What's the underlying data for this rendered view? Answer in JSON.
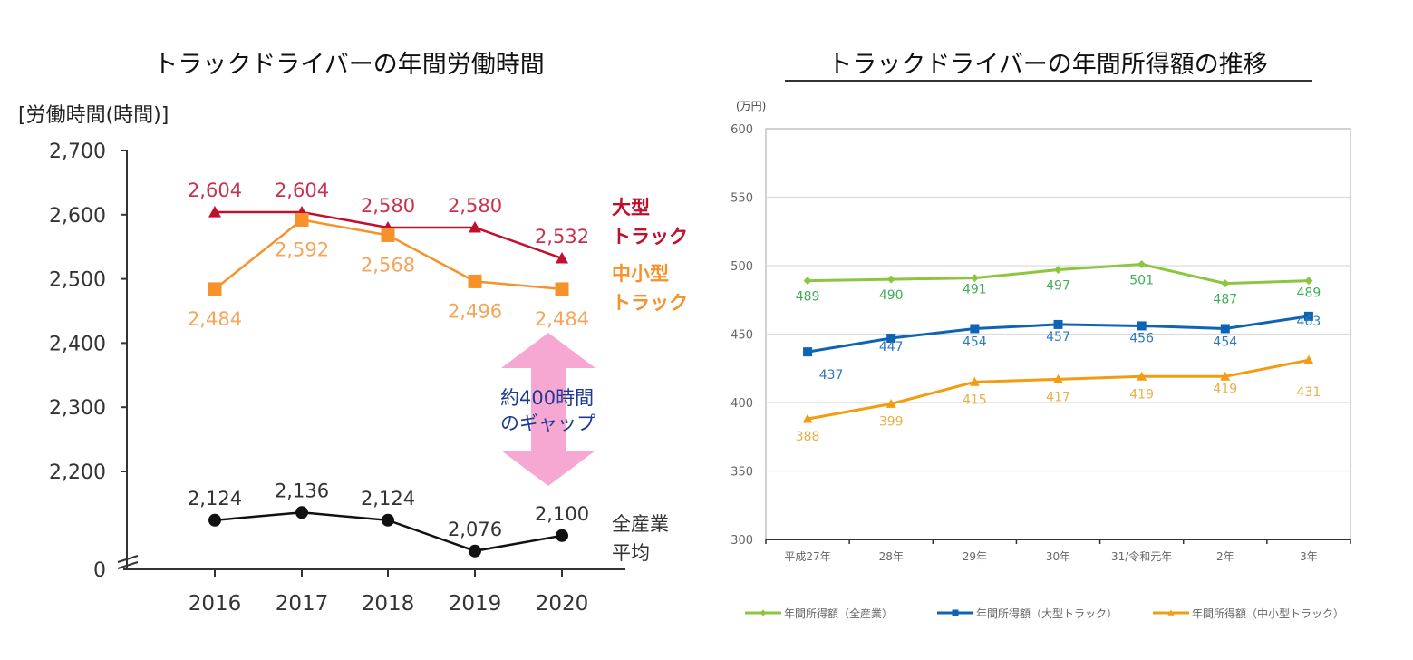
{
  "chart_data": [
    {
      "type": "line",
      "title": "トラックドライバーの年間労働時間",
      "ylabel": "[労働時間(時間)]",
      "xlabel": "",
      "categories": [
        "2016",
        "2017",
        "2018",
        "2019",
        "2020"
      ],
      "y_ticks": [
        "0",
        "2,200",
        "2,300",
        "2,400",
        "2,500",
        "2,600",
        "2,700"
      ],
      "ylim": [
        2050,
        2700
      ],
      "axis_break": true,
      "grid": false,
      "series": [
        {
          "name": "大型トラック",
          "name_lines": [
            "大型",
            "トラック"
          ],
          "color": "#c0102e",
          "label_color": "#c8324f",
          "marker": "triangle",
          "values": [
            2604,
            2604,
            2580,
            2580,
            2532
          ],
          "labels": [
            "2,604",
            "2,604",
            "2,580",
            "2,580",
            "2,532"
          ],
          "label_pos": [
            "above",
            "above",
            "above",
            "above",
            "above"
          ]
        },
        {
          "name": "中小型トラック",
          "name_lines": [
            "中小型",
            "トラック"
          ],
          "color": "#f7922a",
          "label_color": "#f6a55a",
          "marker": "square",
          "values": [
            2484,
            2592,
            2568,
            2496,
            2484
          ],
          "labels": [
            "2,484",
            "2,592",
            "2,568",
            "2,496",
            "2,484"
          ],
          "label_pos": [
            "below",
            "below",
            "below",
            "below",
            "below"
          ]
        },
        {
          "name": "全産業平均",
          "name_lines": [
            "全産業",
            "平均"
          ],
          "color": "#111111",
          "label_color": "#333333",
          "marker": "circle",
          "values": [
            2124,
            2136,
            2124,
            2076,
            2100
          ],
          "labels": [
            "2,124",
            "2,136",
            "2,124",
            "2,076",
            "2,100"
          ],
          "label_pos": [
            "above",
            "above",
            "above",
            "above",
            "above"
          ]
        }
      ],
      "annotation": {
        "text_lines": [
          "約400時間",
          "のギャップ"
        ],
        "arrow_color": "#f7a8d2",
        "text_color": "#1f3a93",
        "arrow": "double-vertical"
      }
    },
    {
      "type": "line",
      "title": "トラックドライバーの年間所得額の推移",
      "ylabel": "(万円)",
      "xlabel": "",
      "categories": [
        "平成27年",
        "28年",
        "29年",
        "30年",
        "31/令和元年",
        "2年",
        "3年"
      ],
      "y_ticks": [
        "300",
        "350",
        "400",
        "450",
        "500",
        "550",
        "600"
      ],
      "ylim": [
        300,
        600
      ],
      "grid": true,
      "legend_position": "bottom",
      "series": [
        {
          "name": "年間所得額（全産業）",
          "color": "#8cc63f",
          "label_color": "#3fae5a",
          "marker": "diamond",
          "values": [
            489,
            490,
            491,
            497,
            501,
            487,
            489
          ]
        },
        {
          "name": "年間所得額（大型トラック）",
          "color": "#0e64b4",
          "label_color": "#2e78bf",
          "marker": "square",
          "values": [
            437,
            447,
            454,
            457,
            456,
            454,
            463
          ]
        },
        {
          "name": "年間所得額（中小型トラック）",
          "color": "#f39c12",
          "label_color": "#e9b04a",
          "marker": "triangle",
          "values": [
            388,
            399,
            415,
            417,
            419,
            419,
            431
          ]
        }
      ]
    }
  ]
}
